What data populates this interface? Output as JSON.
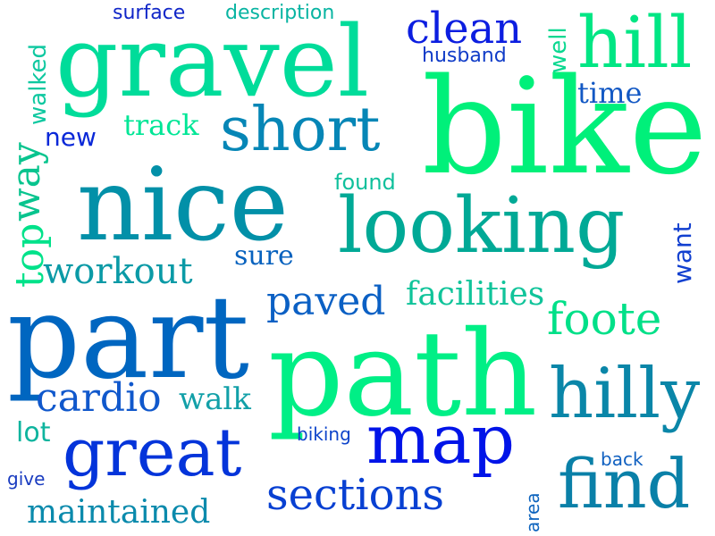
{
  "words": {
    "bike": {
      "text": "bike",
      "color": "#00F07A"
    },
    "gravel": {
      "text": "gravel",
      "color": "#00DC9A"
    },
    "path": {
      "text": "path",
      "color": "#00EF86"
    },
    "nice": {
      "text": "nice",
      "color": "#0290A8"
    },
    "part": {
      "text": "part",
      "color": "#0066C0"
    },
    "looking": {
      "text": "looking",
      "color": "#00A996"
    },
    "hill": {
      "text": "hill",
      "color": "#00E684"
    },
    "short": {
      "text": "short",
      "color": "#0686B6"
    },
    "hilly": {
      "text": "hilly",
      "color": "#0A86A8"
    },
    "map": {
      "text": "map",
      "color": "#0014E8"
    },
    "great": {
      "text": "great",
      "color": "#0434DA"
    },
    "find": {
      "text": "find",
      "color": "#0A80A8"
    },
    "foote": {
      "text": "foote",
      "color": "#00E088"
    },
    "sections": {
      "text": "sections",
      "color": "#0840D2"
    },
    "clean": {
      "text": "clean",
      "color": "#0C1EE0"
    },
    "cardio": {
      "text": "cardio",
      "color": "#1058CC"
    },
    "workout": {
      "text": "workout",
      "color": "#0A9AA6"
    },
    "maintained": {
      "text": "maintained",
      "color": "#0A8AAC"
    },
    "paved": {
      "text": "paved",
      "color": "#0B60C4"
    },
    "facilities": {
      "text": "facilities",
      "color": "#10C49A"
    },
    "walk": {
      "text": "walk",
      "color": "#12A0A8"
    },
    "way": {
      "text": "way",
      "color": "#08C48E"
    },
    "top": {
      "text": "top",
      "color": "#00E28A"
    },
    "walked": {
      "text": "walked",
      "color": "#0EC8A0"
    },
    "track": {
      "text": "track",
      "color": "#00E696"
    },
    "new": {
      "text": "new",
      "color": "#0A28D8"
    },
    "time": {
      "text": "time",
      "color": "#1258C4"
    },
    "want": {
      "text": "want",
      "color": "#1240D0"
    },
    "well": {
      "text": "well",
      "color": "#0AD890"
    },
    "surface": {
      "text": "surface",
      "color": "#1026C8"
    },
    "description": {
      "text": "description",
      "color": "#08B4A2"
    },
    "husband": {
      "text": "husband",
      "color": "#103CC8"
    },
    "found": {
      "text": "found",
      "color": "#10C09C"
    },
    "sure": {
      "text": "sure",
      "color": "#0862BE"
    },
    "lot": {
      "text": "lot",
      "color": "#0EB49E"
    },
    "give": {
      "text": "give",
      "color": "#1A3CC0"
    },
    "biking": {
      "text": "biking",
      "color": "#0E44CA"
    },
    "back": {
      "text": "back",
      "color": "#1060C0"
    },
    "area": {
      "text": "area",
      "color": "#0E64BE"
    }
  }
}
